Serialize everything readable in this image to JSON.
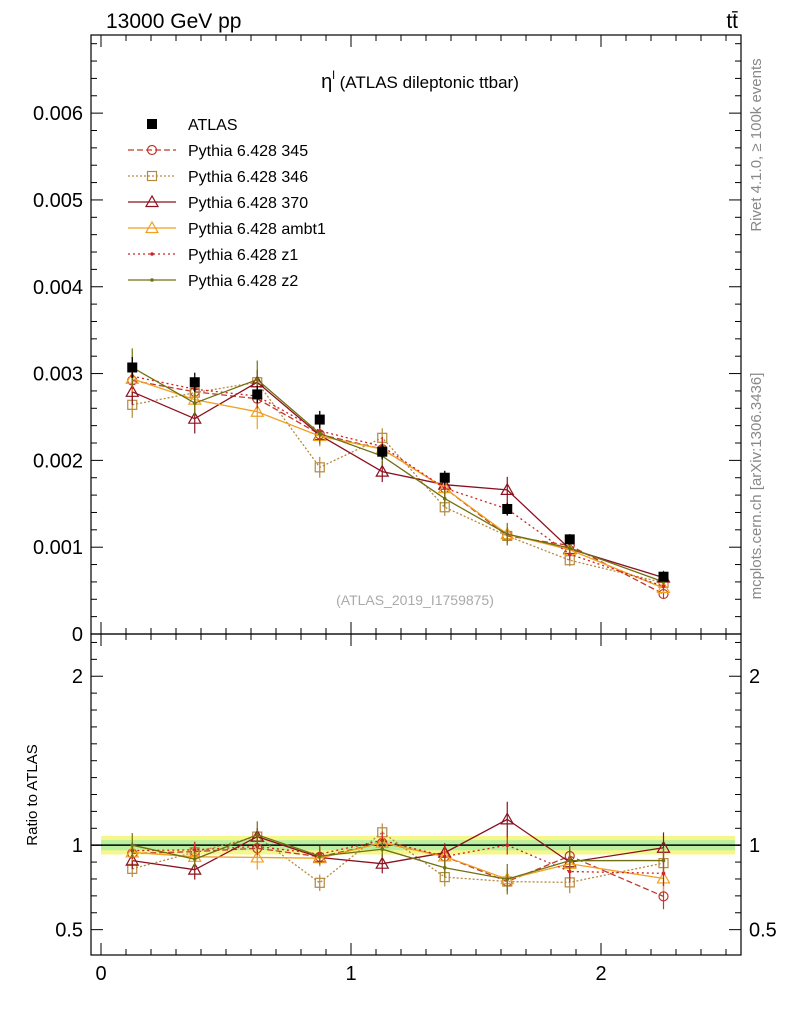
{
  "header": {
    "left": "13000 GeV pp",
    "right": "tt̄"
  },
  "side_labels": {
    "rivet": "Rivet 4.1.0, ≥ 100k events",
    "mcplots": "mcplots.cern.ch [arXiv:1306.3436]"
  },
  "chart_data": {
    "type": "line",
    "title": "η",
    "title_sup": "l",
    "title_rest": " (ATLAS dileptonic ttbar)",
    "watermark": "(ATLAS_2019_I1759875)",
    "x": [
      0.125,
      0.375,
      0.625,
      0.875,
      1.125,
      1.375,
      1.625,
      1.875,
      2.25
    ],
    "xlim": [
      -0.04,
      2.56
    ],
    "xticks": [
      "0",
      "1",
      "2"
    ],
    "xtick_values": [
      0,
      1,
      2
    ],
    "ylim": [
      0,
      0.0069
    ],
    "yticks": [
      "0",
      "0.001",
      "0.002",
      "0.003",
      "0.004",
      "0.005",
      "0.006"
    ],
    "ytick_values": [
      0,
      0.001,
      0.002,
      0.003,
      0.004,
      0.005,
      0.006
    ],
    "ratio_ylabel": "Ratio to ATLAS",
    "ratio_ylim": [
      0.35,
      2.25
    ],
    "ratio_yticks": [
      "0.5",
      "1",
      "2"
    ],
    "ratio_ytick_values": [
      0.5,
      1,
      2
    ],
    "data": {
      "name": "ATLAS",
      "values": [
        0.00307,
        0.0029,
        0.00276,
        0.00247,
        0.0021,
        0.0018,
        0.00144,
        0.00109,
        0.00066
      ],
      "errors": [
        0.00012,
        0.00011,
        0.0001,
        0.0001,
        9e-05,
        8e-05,
        7e-05,
        6e-05,
        4e-05
      ]
    },
    "series": [
      {
        "name": "Pythia 6.428 345",
        "color": "#c0392b",
        "dash": "6,3",
        "marker": "circle",
        "values": [
          0.00292,
          0.00279,
          0.00271,
          0.0023,
          0.00213,
          0.00168,
          0.00113,
          0.00102,
          0.00046
        ],
        "errors": [
          0.00015,
          0.00014,
          0.00014,
          0.00012,
          0.00011,
          0.0001,
          8e-05,
          7e-05,
          5e-05
        ]
      },
      {
        "name": "Pythia 6.428 346",
        "color": "#b5893e",
        "dash": "2,2",
        "marker": "square",
        "values": [
          0.00264,
          0.00278,
          0.0029,
          0.00192,
          0.00226,
          0.00146,
          0.00113,
          0.00085,
          0.00059
        ],
        "errors": [
          0.00015,
          0.00014,
          0.00014,
          0.00012,
          0.00011,
          0.0001,
          8e-05,
          7e-05,
          5e-05
        ]
      },
      {
        "name": "Pythia 6.428 370",
        "color": "#8b1020",
        "dash": "",
        "marker": "triangle",
        "values": [
          0.00279,
          0.00248,
          0.0029,
          0.00229,
          0.00187,
          0.00172,
          0.00166,
          0.00098,
          0.00065
        ],
        "errors": [
          0.00015,
          0.00017,
          0.00014,
          0.00012,
          0.00012,
          0.0001,
          0.00015,
          8e-05,
          6e-05
        ]
      },
      {
        "name": "Pythia 6.428 ambt1",
        "color": "#f0a020",
        "dash": "",
        "marker": "triangle",
        "values": [
          0.00294,
          0.0027,
          0.00256,
          0.00228,
          0.00213,
          0.00168,
          0.00115,
          0.00097,
          0.00053
        ],
        "errors": [
          0.00015,
          0.00014,
          0.0002,
          0.00012,
          0.00011,
          0.0001,
          8e-05,
          7e-05,
          5e-05
        ]
      },
      {
        "name": "Pythia 6.428 z1",
        "color": "#d02020",
        "dash": "2,3",
        "marker": "dot",
        "values": [
          0.00297,
          0.00282,
          0.00274,
          0.00234,
          0.00216,
          0.00168,
          0.00144,
          0.00092,
          0.00055
        ],
        "errors": [
          0.00015,
          0.00014,
          0.00014,
          0.00012,
          0.00011,
          0.0001,
          8e-05,
          7e-05,
          5e-05
        ]
      },
      {
        "name": "Pythia 6.428 z2",
        "color": "#707010",
        "dash": "",
        "marker": "dot",
        "values": [
          0.00307,
          0.00266,
          0.00293,
          0.00231,
          0.00205,
          0.00156,
          0.00115,
          0.00099,
          0.0006
        ],
        "errors": [
          0.00022,
          0.00014,
          0.00022,
          0.00012,
          0.00011,
          0.0001,
          0.00013,
          7e-05,
          5e-05
        ]
      }
    ]
  }
}
